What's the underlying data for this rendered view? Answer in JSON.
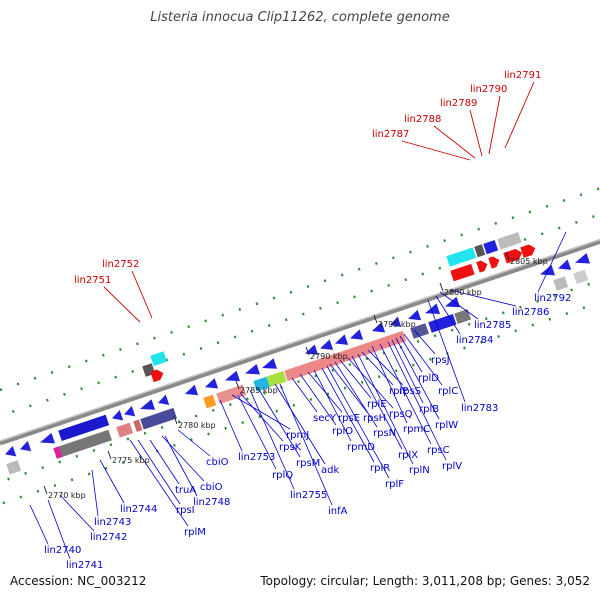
{
  "title": "Listeria innocua Clip11262, complete genome",
  "accession": "Accession: NC_003212",
  "summary": "Topology: circular; Length: 3,011,208 bp; Genes: 3,052",
  "colors": {
    "backbone": "#888888",
    "tick_dots": "#2e8b2e",
    "label_forward": "#cc0000",
    "label_reverse": "#0000cc"
  },
  "scale_labels": [
    "2770 kbp",
    "2775 kbp",
    "2780 kbp",
    "2785 kbp",
    "2790 kbp",
    "2795 kbp",
    "2800 kbp",
    "2805 kbp"
  ],
  "forward_labels": [
    "lin2751",
    "lin2752",
    "lin2787",
    "lin2788",
    "lin2789",
    "lin2790",
    "lin2791"
  ],
  "reverse_labels": [
    "lin2740",
    "lin2741",
    "lin2742",
    "lin2743",
    "lin2744",
    "rpsI",
    "rplM",
    "truA",
    "cbiO",
    "lin2748",
    "cbiO",
    "lin2753",
    "rplQ",
    "rpmJ",
    "rpsK",
    "rpsM",
    "lin2755",
    "adk",
    "infA",
    "secY",
    "rplO",
    "rpsE",
    "rpmD",
    "rplR",
    "rplF",
    "rpsH",
    "rpsN",
    "rplE",
    "rpsQ",
    "rplX",
    "rplN",
    "rplP",
    "rpsS",
    "rpmC",
    "rpsC",
    "rplV",
    "rplB",
    "rplW",
    "rplD",
    "rplC",
    "rpsJ",
    "lin2783",
    "lin2784",
    "lin2785",
    "lin2786",
    "lin2792"
  ]
}
